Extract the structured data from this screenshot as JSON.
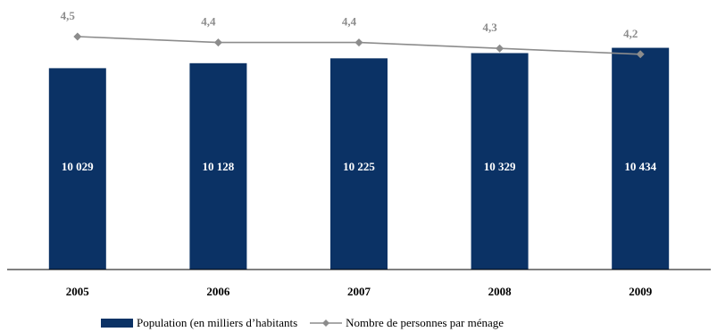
{
  "chart_data": {
    "type": "bar",
    "categories": [
      "2005",
      "2006",
      "2007",
      "2008",
      "2009"
    ],
    "series": [
      {
        "name": "Population (en milliers d’habitants",
        "type": "bar",
        "values": [
          10029,
          10128,
          10225,
          10329,
          10434
        ],
        "labels": [
          "10 029",
          "10 128",
          "10 225",
          "10 329",
          "10 434"
        ],
        "color": "#0b3265"
      },
      {
        "name": "Nombre de personnes par ménage",
        "type": "line",
        "values": [
          4.5,
          4.4,
          4.4,
          4.3,
          4.2
        ],
        "labels": [
          "4,5",
          "4,4",
          "4,4",
          "4,3",
          "4,2"
        ],
        "color": "#8c8c8c"
      }
    ],
    "title": "",
    "xlabel": "",
    "ylabel": "",
    "grid": false,
    "legend": "bottom"
  }
}
